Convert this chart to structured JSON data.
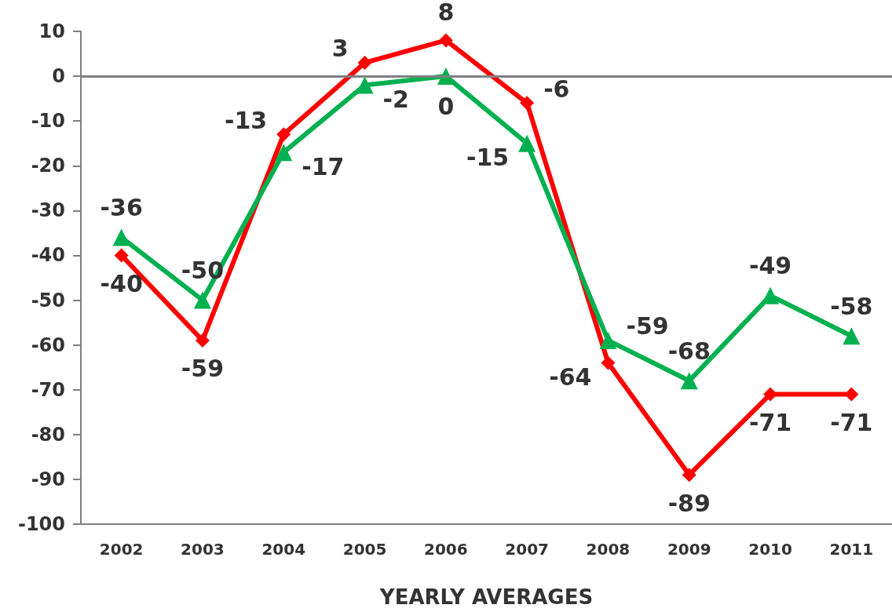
{
  "chart_data": {
    "type": "line",
    "xlabel": "YEARLY AVERAGES",
    "categories": [
      "2002",
      "2003",
      "2004",
      "2005",
      "2006",
      "2007",
      "2008",
      "2009",
      "2010",
      "2011"
    ],
    "series": [
      {
        "color": "#ff0000",
        "marker": "diamond",
        "values": [
          -40,
          -59,
          -13,
          3,
          8,
          -6,
          -64,
          -89,
          -71,
          -71
        ]
      },
      {
        "color": "#00b050",
        "marker": "triangle",
        "values": [
          -36,
          -50,
          -17,
          -2,
          0,
          -15,
          -59,
          -68,
          -49,
          -58
        ]
      }
    ],
    "ylim": [
      -100,
      10
    ],
    "yticks": [
      -100,
      -90,
      -80,
      -70,
      -60,
      -50,
      -40,
      -30,
      -20,
      -10,
      0,
      10
    ],
    "ref_lines": [
      {
        "axis": "y",
        "value": 0,
        "color": "#808080"
      }
    ],
    "data_labels": true,
    "grid": false,
    "line_style": "solid"
  }
}
